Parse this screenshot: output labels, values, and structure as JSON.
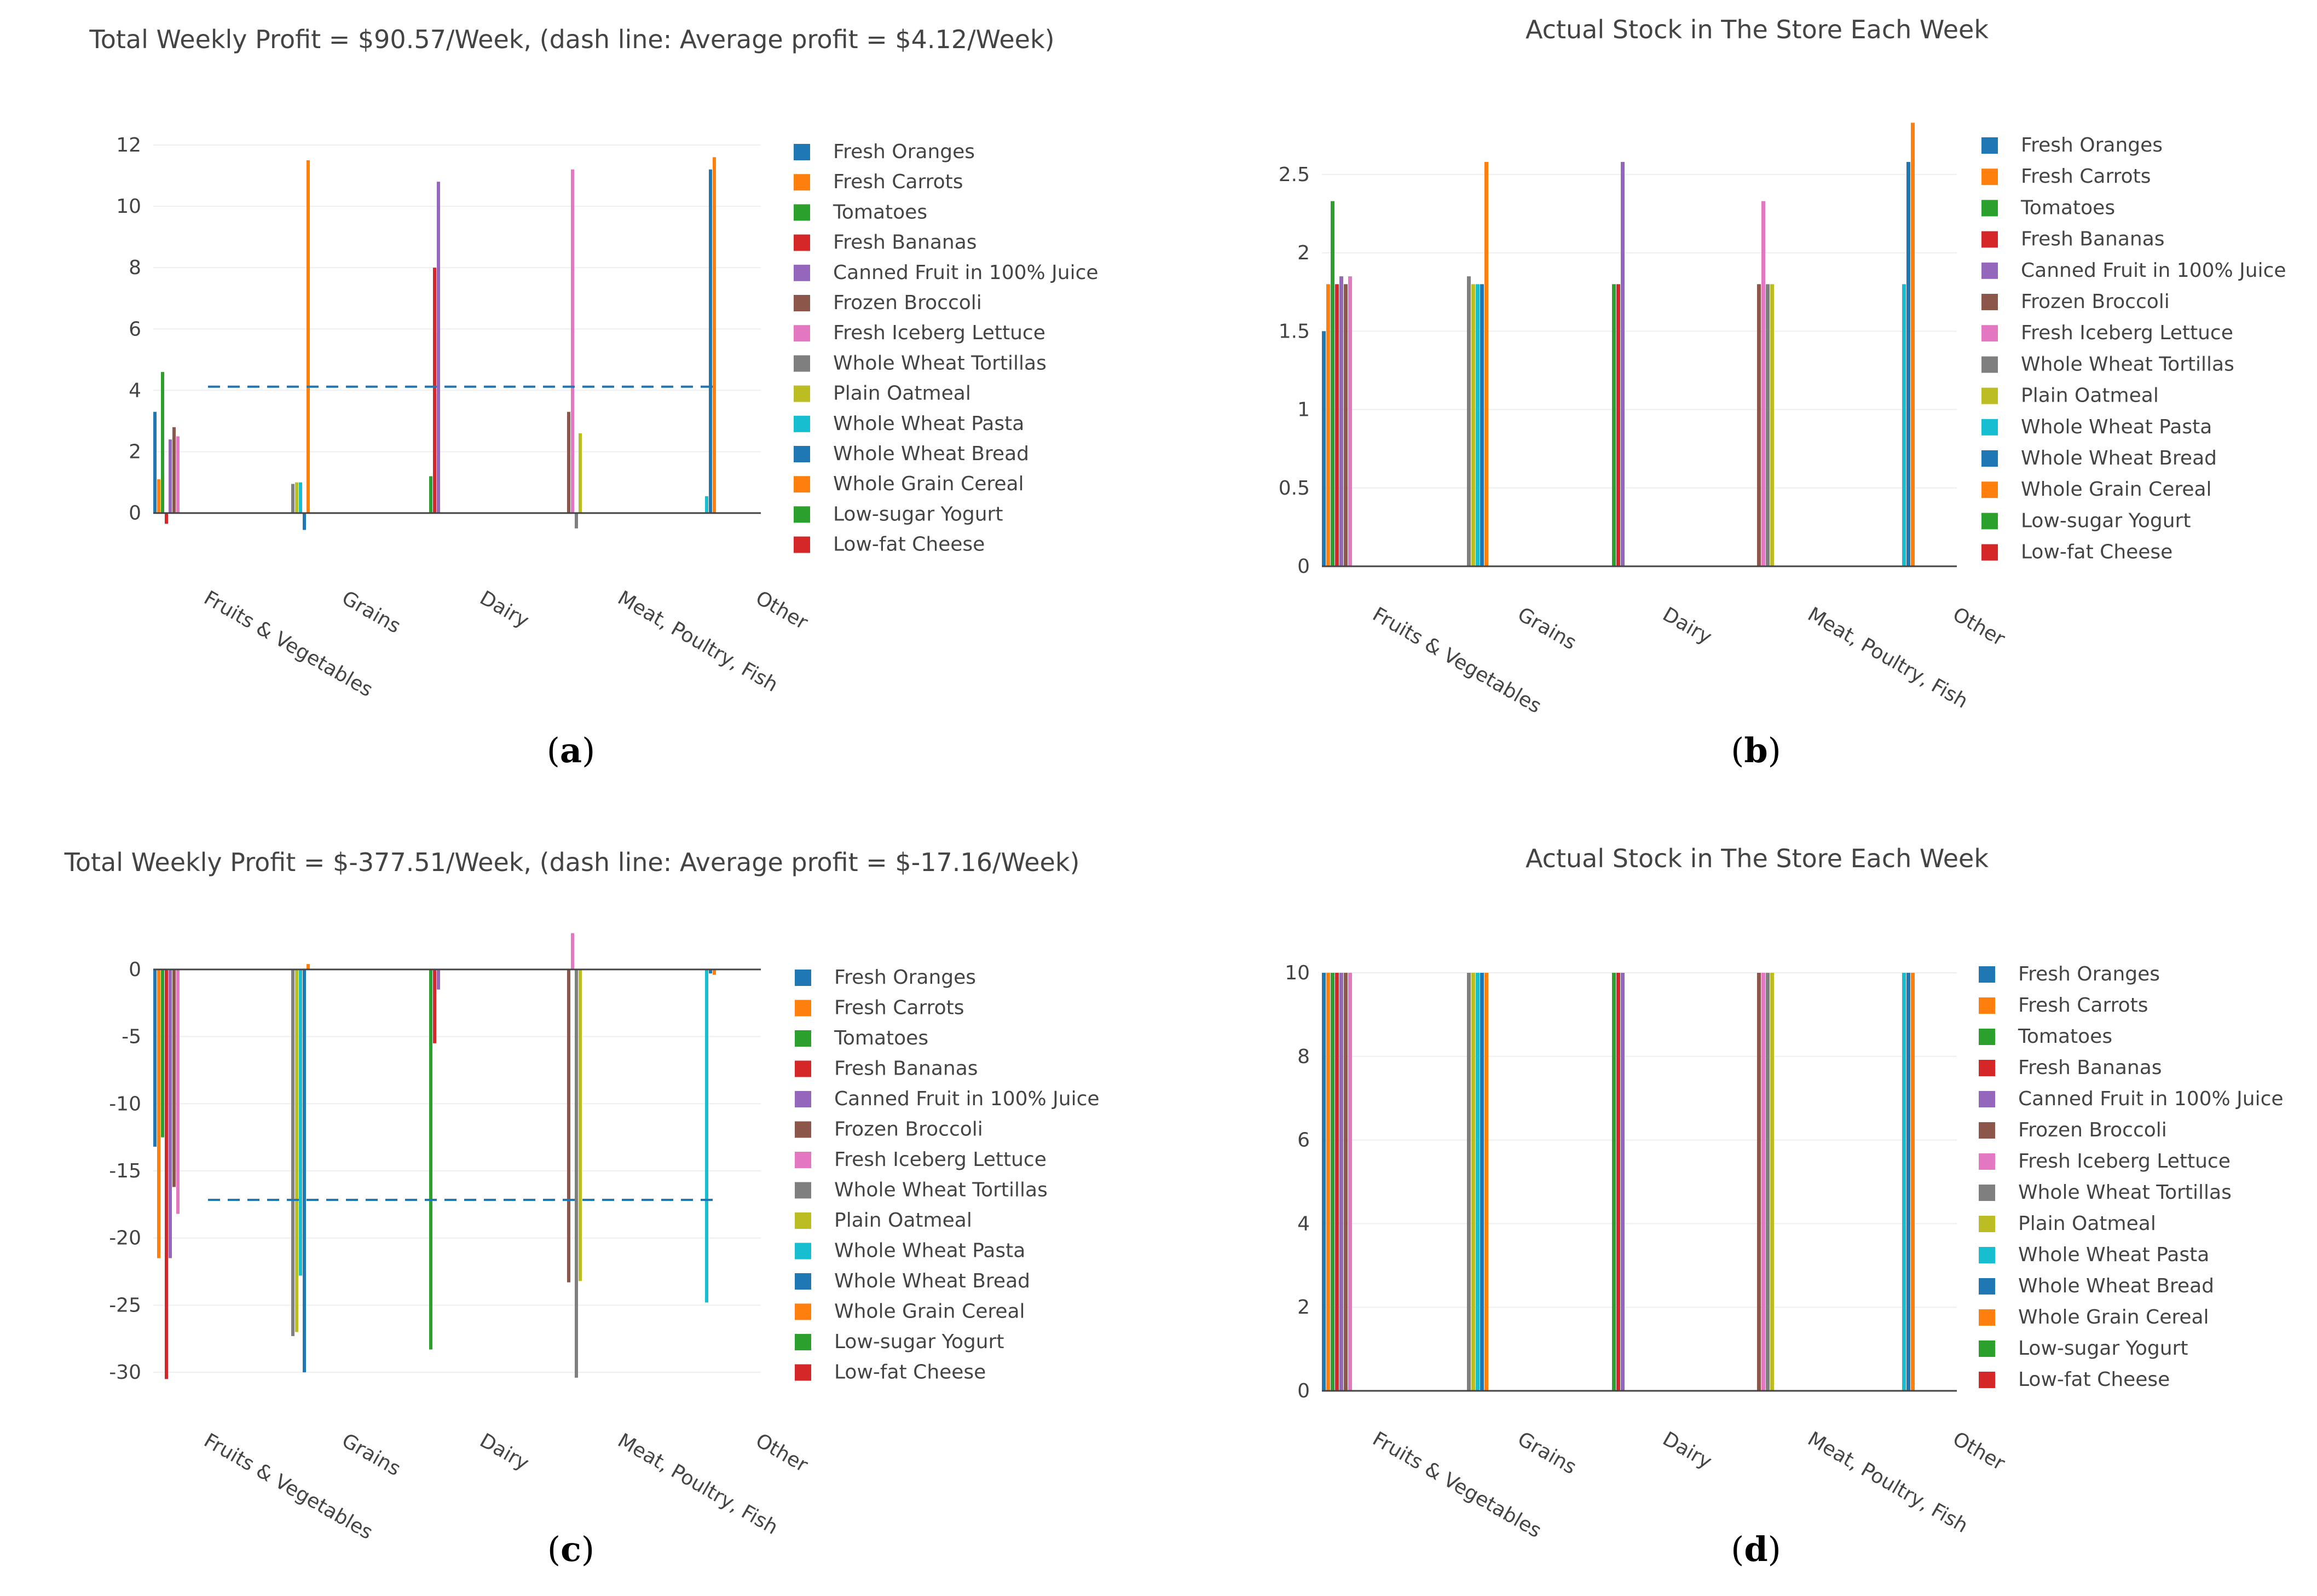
{
  "products": [
    {
      "name": "Fresh Oranges",
      "color": "#1f77b4"
    },
    {
      "name": "Fresh Carrots",
      "color": "#ff7f0e"
    },
    {
      "name": "Tomatoes",
      "color": "#2ca02c"
    },
    {
      "name": "Fresh Bananas",
      "color": "#d62728"
    },
    {
      "name": "Canned Fruit in 100% Juice",
      "color": "#9467bd"
    },
    {
      "name": "Frozen Broccoli",
      "color": "#8c564b"
    },
    {
      "name": "Fresh Iceberg Lettuce",
      "color": "#e377c2"
    },
    {
      "name": "Whole Wheat Tortillas",
      "color": "#7f7f7f"
    },
    {
      "name": "Plain Oatmeal",
      "color": "#bcbd22"
    },
    {
      "name": "Whole Wheat Pasta",
      "color": "#17becf"
    },
    {
      "name": "Whole Wheat Bread",
      "color": "#1f77b4"
    },
    {
      "name": "Whole Grain Cereal",
      "color": "#ff7f0e"
    },
    {
      "name": "Low-sugar Yogurt",
      "color": "#2ca02c"
    },
    {
      "name": "Low-fat Cheese",
      "color": "#d62728"
    }
  ],
  "chart_data": [
    {
      "panel": "a",
      "type": "bar",
      "title": "Total Weekly Profit = $90.57/Week, (dash line: Average profit = $4.12/Week)",
      "categories": [
        "Fruits & Vegetables",
        "Grains",
        "Dairy",
        "Meat, Poultry, Fish",
        "Other"
      ],
      "yticks": [
        0,
        2,
        4,
        6,
        8,
        10,
        12
      ],
      "ylim": [
        -1.2,
        12.8
      ],
      "average_line": 4.12,
      "bars": [
        {
          "category": "Fruits & Vegetables",
          "product": "Fresh Oranges",
          "value": 3.3
        },
        {
          "category": "Fruits & Vegetables",
          "product": "Fresh Carrots",
          "value": 1.1
        },
        {
          "category": "Fruits & Vegetables",
          "product": "Tomatoes",
          "value": 4.6
        },
        {
          "category": "Fruits & Vegetables",
          "product": "Fresh Bananas",
          "value": -0.35
        },
        {
          "category": "Fruits & Vegetables",
          "product": "Canned Fruit in 100% Juice",
          "value": 2.4
        },
        {
          "category": "Fruits & Vegetables",
          "product": "Frozen Broccoli",
          "value": 2.8
        },
        {
          "category": "Fruits & Vegetables",
          "product": "Fresh Iceberg Lettuce",
          "value": 2.5
        },
        {
          "category": "Grains",
          "product": "Whole Wheat Tortillas",
          "value": 0.95
        },
        {
          "category": "Grains",
          "product": "Plain Oatmeal",
          "value": 1.0
        },
        {
          "category": "Grains",
          "product": "Whole Wheat Pasta",
          "value": 1.0
        },
        {
          "category": "Grains",
          "product": "Whole Wheat Bread",
          "value": -0.55
        },
        {
          "category": "Grains",
          "product": "Whole Grain Cereal",
          "value": 11.5
        },
        {
          "category": "Dairy",
          "product": "Low-sugar Yogurt",
          "value": 1.2
        },
        {
          "category": "Dairy",
          "product": "Low-fat Cheese",
          "value": 8.0
        },
        {
          "category": "Dairy",
          "product": "Canned Fruit in 100% Juice",
          "value": 10.8
        },
        {
          "category": "Meat, Poultry, Fish",
          "product": "Frozen Broccoli",
          "value": 3.3
        },
        {
          "category": "Meat, Poultry, Fish",
          "product": "Fresh Iceberg Lettuce",
          "value": 11.2
        },
        {
          "category": "Meat, Poultry, Fish",
          "product": "Whole Wheat Tortillas",
          "value": -0.5
        },
        {
          "category": "Meat, Poultry, Fish",
          "product": "Plain Oatmeal",
          "value": 2.6
        },
        {
          "category": "Other",
          "product": "Whole Wheat Pasta",
          "value": 0.55
        },
        {
          "category": "Other",
          "product": "Whole Wheat Bread",
          "value": 11.2
        },
        {
          "category": "Other",
          "product": "Whole Grain Cereal",
          "value": 11.6
        }
      ]
    },
    {
      "panel": "b",
      "type": "bar",
      "title": "Actual Stock in The Store Each Week",
      "categories": [
        "Fruits & Vegetables",
        "Grains",
        "Dairy",
        "Meat, Poultry, Fish",
        "Other"
      ],
      "yticks": [
        0,
        0.5,
        1,
        1.5,
        2,
        2.5
      ],
      "ylim": [
        0,
        2.88
      ],
      "bars": [
        {
          "category": "Fruits & Vegetables",
          "product": "Fresh Oranges",
          "value": 1.5
        },
        {
          "category": "Fruits & Vegetables",
          "product": "Fresh Carrots",
          "value": 1.8
        },
        {
          "category": "Fruits & Vegetables",
          "product": "Tomatoes",
          "value": 2.33
        },
        {
          "category": "Fruits & Vegetables",
          "product": "Fresh Bananas",
          "value": 1.8
        },
        {
          "category": "Fruits & Vegetables",
          "product": "Canned Fruit in 100% Juice",
          "value": 1.85
        },
        {
          "category": "Fruits & Vegetables",
          "product": "Frozen Broccoli",
          "value": 1.8
        },
        {
          "category": "Fruits & Vegetables",
          "product": "Fresh Iceberg Lettuce",
          "value": 1.85
        },
        {
          "category": "Grains",
          "product": "Whole Wheat Tortillas",
          "value": 1.85
        },
        {
          "category": "Grains",
          "product": "Plain Oatmeal",
          "value": 1.8
        },
        {
          "category": "Grains",
          "product": "Whole Wheat Pasta",
          "value": 1.8
        },
        {
          "category": "Grains",
          "product": "Whole Wheat Bread",
          "value": 1.8
        },
        {
          "category": "Grains",
          "product": "Whole Grain Cereal",
          "value": 2.58
        },
        {
          "category": "Dairy",
          "product": "Low-sugar Yogurt",
          "value": 1.8
        },
        {
          "category": "Dairy",
          "product": "Low-fat Cheese",
          "value": 1.8
        },
        {
          "category": "Dairy",
          "product": "Canned Fruit in 100% Juice",
          "value": 2.58
        },
        {
          "category": "Meat, Poultry, Fish",
          "product": "Frozen Broccoli",
          "value": 1.8
        },
        {
          "category": "Meat, Poultry, Fish",
          "product": "Fresh Iceberg Lettuce",
          "value": 2.33
        },
        {
          "category": "Meat, Poultry, Fish",
          "product": "Whole Wheat Tortillas",
          "value": 1.8
        },
        {
          "category": "Meat, Poultry, Fish",
          "product": "Plain Oatmeal",
          "value": 1.8
        },
        {
          "category": "Other",
          "product": "Whole Wheat Pasta",
          "value": 1.8
        },
        {
          "category": "Other",
          "product": "Whole Wheat Bread",
          "value": 2.58
        },
        {
          "category": "Other",
          "product": "Whole Grain Cereal",
          "value": 2.83
        }
      ]
    },
    {
      "panel": "c",
      "type": "bar",
      "title": "Total Weekly Profit = $-377.51/Week, (dash line: Average profit = $-17.16/Week)",
      "categories": [
        "Fruits & Vegetables",
        "Grains",
        "Dairy",
        "Meat, Poultry, Fish",
        "Other"
      ],
      "yticks": [
        -30,
        -25,
        -20,
        -15,
        -10,
        -5,
        0
      ],
      "ylim": [
        -31.5,
        1.5
      ],
      "average_line": -17.16,
      "bars": [
        {
          "category": "Fruits & Vegetables",
          "product": "Fresh Oranges",
          "value": -13.2
        },
        {
          "category": "Fruits & Vegetables",
          "product": "Fresh Carrots",
          "value": -21.5
        },
        {
          "category": "Fruits & Vegetables",
          "product": "Tomatoes",
          "value": -12.5
        },
        {
          "category": "Fruits & Vegetables",
          "product": "Fresh Bananas",
          "value": -30.5
        },
        {
          "category": "Fruits & Vegetables",
          "product": "Canned Fruit in 100% Juice",
          "value": -21.5
        },
        {
          "category": "Fruits & Vegetables",
          "product": "Frozen Broccoli",
          "value": -16.2
        },
        {
          "category": "Fruits & Vegetables",
          "product": "Fresh Iceberg Lettuce",
          "value": -18.2
        },
        {
          "category": "Grains",
          "product": "Whole Wheat Tortillas",
          "value": -27.3
        },
        {
          "category": "Grains",
          "product": "Plain Oatmeal",
          "value": -27.0
        },
        {
          "category": "Grains",
          "product": "Whole Wheat Pasta",
          "value": -22.8
        },
        {
          "category": "Grains",
          "product": "Whole Wheat Bread",
          "value": -30.0
        },
        {
          "category": "Grains",
          "product": "Whole Grain Cereal",
          "value": 0.4
        },
        {
          "category": "Dairy",
          "product": "Low-sugar Yogurt",
          "value": -28.3
        },
        {
          "category": "Dairy",
          "product": "Low-fat Cheese",
          "value": -5.5
        },
        {
          "category": "Dairy",
          "product": "Canned Fruit in 100% Juice",
          "value": -1.5
        },
        {
          "category": "Meat, Poultry, Fish",
          "product": "Frozen Broccoli",
          "value": -23.3
        },
        {
          "category": "Meat, Poultry, Fish",
          "product": "Fresh Iceberg Lettuce",
          "value": 2.7
        },
        {
          "category": "Meat, Poultry, Fish",
          "product": "Whole Wheat Tortillas",
          "value": -30.4
        },
        {
          "category": "Meat, Poultry, Fish",
          "product": "Plain Oatmeal",
          "value": -23.2
        },
        {
          "category": "Other",
          "product": "Whole Wheat Pasta",
          "value": -24.8
        },
        {
          "category": "Other",
          "product": "Whole Wheat Bread",
          "value": -0.3
        },
        {
          "category": "Other",
          "product": "Whole Grain Cereal",
          "value": -0.4
        }
      ]
    },
    {
      "panel": "d",
      "type": "bar",
      "title": "Actual Stock in The Store Each Week",
      "categories": [
        "Fruits & Vegetables",
        "Grains",
        "Dairy",
        "Meat, Poultry, Fish",
        "Other"
      ],
      "yticks": [
        0,
        2,
        4,
        6,
        8,
        10
      ],
      "ylim": [
        0,
        10
      ],
      "bars": [
        {
          "category": "Fruits & Vegetables",
          "product": "Fresh Oranges",
          "value": 10
        },
        {
          "category": "Fruits & Vegetables",
          "product": "Fresh Carrots",
          "value": 10
        },
        {
          "category": "Fruits & Vegetables",
          "product": "Tomatoes",
          "value": 10
        },
        {
          "category": "Fruits & Vegetables",
          "product": "Fresh Bananas",
          "value": 10
        },
        {
          "category": "Fruits & Vegetables",
          "product": "Canned Fruit in 100% Juice",
          "value": 10
        },
        {
          "category": "Fruits & Vegetables",
          "product": "Frozen Broccoli",
          "value": 10
        },
        {
          "category": "Fruits & Vegetables",
          "product": "Fresh Iceberg Lettuce",
          "value": 10
        },
        {
          "category": "Grains",
          "product": "Whole Wheat Tortillas",
          "value": 10
        },
        {
          "category": "Grains",
          "product": "Plain Oatmeal",
          "value": 10
        },
        {
          "category": "Grains",
          "product": "Whole Wheat Pasta",
          "value": 10
        },
        {
          "category": "Grains",
          "product": "Whole Wheat Bread",
          "value": 10
        },
        {
          "category": "Grains",
          "product": "Whole Grain Cereal",
          "value": 10
        },
        {
          "category": "Dairy",
          "product": "Low-sugar Yogurt",
          "value": 10
        },
        {
          "category": "Dairy",
          "product": "Low-fat Cheese",
          "value": 10
        },
        {
          "category": "Dairy",
          "product": "Canned Fruit in 100% Juice",
          "value": 10
        },
        {
          "category": "Meat, Poultry, Fish",
          "product": "Frozen Broccoli",
          "value": 10
        },
        {
          "category": "Meat, Poultry, Fish",
          "product": "Fresh Iceberg Lettuce",
          "value": 10
        },
        {
          "category": "Meat, Poultry, Fish",
          "product": "Whole Wheat Tortillas",
          "value": 10
        },
        {
          "category": "Meat, Poultry, Fish",
          "product": "Plain Oatmeal",
          "value": 10
        },
        {
          "category": "Other",
          "product": "Whole Wheat Pasta",
          "value": 10
        },
        {
          "category": "Other",
          "product": "Whole Wheat Bread",
          "value": 10
        },
        {
          "category": "Other",
          "product": "Whole Grain Cereal",
          "value": 10
        }
      ]
    }
  ],
  "panel_labels": [
    "(a)",
    "(b)",
    "(c)",
    "(d)"
  ]
}
